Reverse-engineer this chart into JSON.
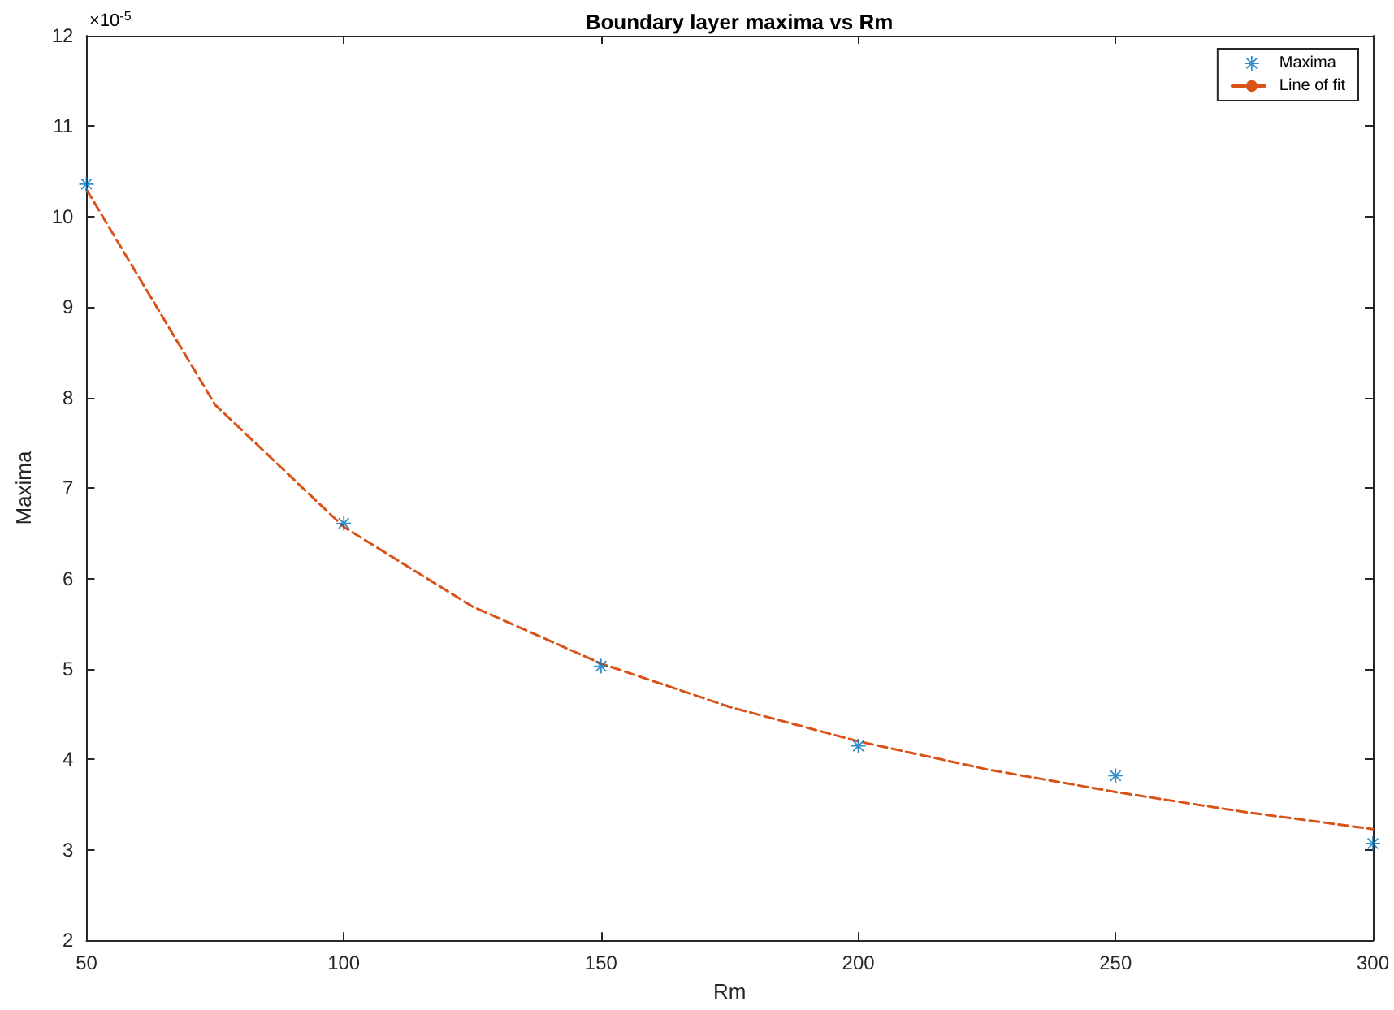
{
  "chart_data": {
    "type": "scatter",
    "title": "Boundary layer maxima vs Rm",
    "xlabel": "Rm",
    "ylabel": "Maxima",
    "annotations": [
      "×10$^{-5}$"
    ],
    "x": [
      50,
      100,
      150,
      200,
      250,
      300
    ],
    "series": [
      {
        "name": "Maxima",
        "color": "#0072bd",
        "marker": "star",
        "values": [
          10.36,
          6.61,
          5.03,
          4.15,
          3.82,
          3.07
        ]
      },
      {
        "name": "Line of fit",
        "type": "line",
        "color": "#d95319",
        "marker": "none",
        "line_style": "dashed",
        "x": [
          50,
          75,
          100,
          125,
          150,
          175,
          200,
          225,
          250,
          275,
          300
        ],
        "values": [
          10.3,
          7.92,
          6.57,
          5.69,
          5.06,
          4.58,
          4.2,
          3.89,
          3.64,
          3.42,
          3.23
        ]
      }
    ],
    "xlim": [
      50,
      300
    ],
    "xticks": [
      50,
      100,
      150,
      200,
      250,
      300
    ],
    "ylim": [
      2,
      12
    ],
    "yticks": [
      2,
      3,
      4,
      5,
      6,
      7,
      8,
      9,
      10,
      11,
      12
    ],
    "grid": false,
    "legend": "top right"
  }
}
